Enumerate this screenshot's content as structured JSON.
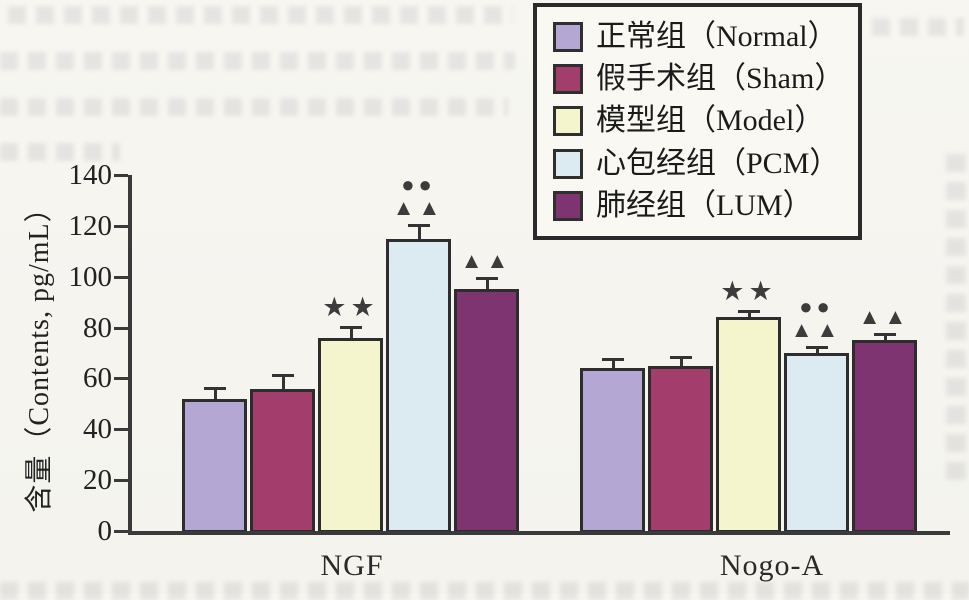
{
  "chart_data": {
    "type": "bar",
    "title": "",
    "xlabel": "",
    "ylabel": "含量（Contents, pg/mL）",
    "ylim": [
      0,
      140
    ],
    "yticks": [
      0,
      20,
      40,
      60,
      80,
      100,
      120,
      140
    ],
    "grid": false,
    "legend_position": "top-right",
    "categories": [
      "NGF",
      "Nogo-A"
    ],
    "series": [
      {
        "name": "正常组（Normal）",
        "color": "#b4a7d3",
        "values": [
          52,
          64
        ],
        "errors": [
          4,
          3
        ],
        "marks": [
          [],
          []
        ]
      },
      {
        "name": "假手术组（Sham）",
        "color": "#a23d6c",
        "values": [
          56,
          65
        ],
        "errors": [
          5,
          3
        ],
        "marks": [
          [],
          []
        ]
      },
      {
        "name": "模型组（Model）",
        "color": "#f4f5cd",
        "values": [
          76,
          84
        ],
        "errors": [
          4,
          2
        ],
        "marks": [
          [
            "★★"
          ],
          [
            "★★"
          ]
        ]
      },
      {
        "name": "心包经组（PCM）",
        "color": "#dcebf2",
        "values": [
          115,
          70
        ],
        "errors": [
          5,
          2
        ],
        "marks": [
          [
            "●●",
            "▲▲"
          ],
          [
            "●●",
            "▲▲"
          ]
        ]
      },
      {
        "name": "肺经组（LUM）",
        "color": "#7d3470",
        "values": [
          95,
          75
        ],
        "errors": [
          4,
          2
        ],
        "marks": [
          [
            "▲▲"
          ],
          [
            "▲▲"
          ]
        ]
      }
    ]
  }
}
